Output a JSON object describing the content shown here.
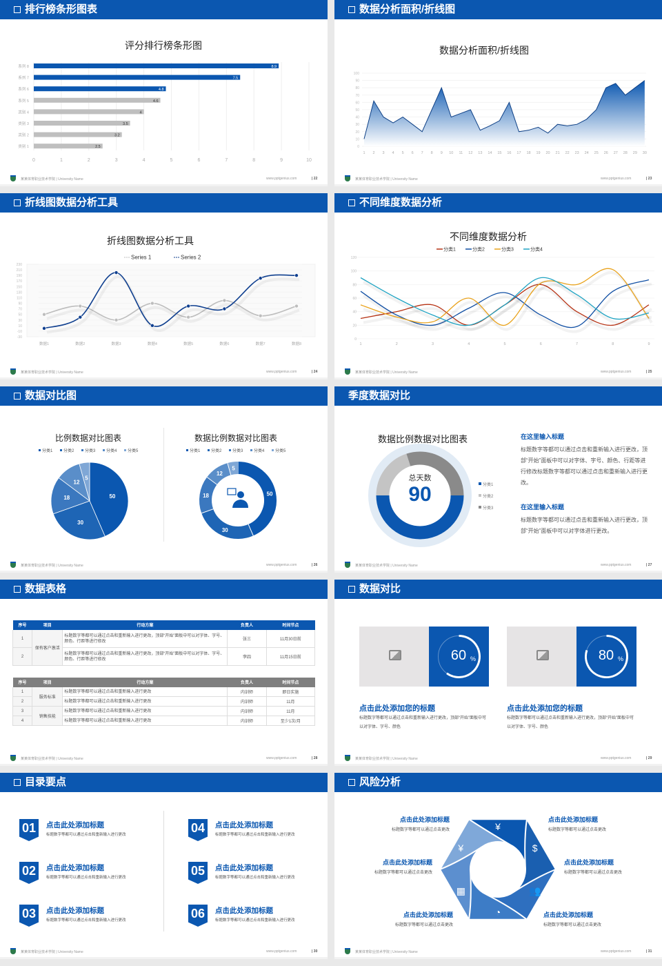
{
  "footer": {
    "school": "某某体育职业技术学院 | University Name",
    "site": "www.pptgenius.com"
  },
  "colors": {
    "brand": "#0b57b0",
    "gray_bar": "#bfbfbf",
    "table2_header": "#7f7f7f"
  },
  "slides": [
    {
      "title": "排行榜条形图表",
      "page": "22",
      "header_icon": "square-bullet-icon"
    },
    {
      "title": "数据分析面积/折线图",
      "page": "23",
      "header_icon": "square-bullet-icon"
    },
    {
      "title": "折线图数据分析工具",
      "page": "24",
      "header_icon": "square-bullet-icon"
    },
    {
      "title": "不同维度数据分析",
      "page": "25",
      "header_icon": "square-bullet-icon"
    },
    {
      "title": "数据对比图",
      "page": "26",
      "header_icon": "square-bullet-icon"
    },
    {
      "title": "季度数据对比",
      "page": "27",
      "header_icon": null
    },
    {
      "title": "数据表格",
      "page": "28",
      "header_icon": "square-bullet-icon"
    },
    {
      "title": "数据对比",
      "page": "29",
      "header_icon": "square-bullet-icon"
    },
    {
      "title": "目录要点",
      "page": "30",
      "header_icon": "square-bullet-icon"
    },
    {
      "title": "风险分析",
      "page": "31",
      "header_icon": "square-bullet-icon"
    }
  ],
  "chart_data": [
    {
      "type": "bar",
      "orientation": "horizontal",
      "title": "评分排行榜条形图",
      "categories": [
        "系列 8",
        "系列 7",
        "系列 6",
        "系列 5",
        "类别 4",
        "类别 3",
        "类别 2",
        "类别 1"
      ],
      "values": [
        8.9,
        7.5,
        4.8,
        4.6,
        4,
        3.5,
        3.2,
        2.5
      ],
      "highlight_colors": [
        "#0b57b0",
        "#0b57b0",
        "#0b57b0",
        "#bfbfbf",
        "#bfbfbf",
        "#bfbfbf",
        "#bfbfbf",
        "#bfbfbf"
      ],
      "xlim": [
        0,
        10
      ],
      "xticks": [
        0,
        1,
        2,
        3,
        4,
        5,
        6,
        7,
        8,
        9,
        10
      ],
      "grid": true
    },
    {
      "type": "area",
      "title": "数据分析面积/折线图",
      "x": [
        1,
        2,
        3,
        4,
        5,
        6,
        7,
        8,
        9,
        10,
        11,
        12,
        13,
        14,
        15,
        16,
        17,
        18,
        19,
        20,
        21,
        22,
        23,
        24,
        25,
        26,
        27,
        28,
        29,
        30
      ],
      "values": [
        10,
        62,
        40,
        32,
        40,
        30,
        20,
        50,
        80,
        40,
        45,
        50,
        22,
        28,
        35,
        60,
        20,
        22,
        26,
        18,
        30,
        28,
        30,
        37,
        50,
        80,
        86,
        70,
        80,
        90
      ],
      "ylim": [
        0,
        100
      ],
      "yticks": [
        0,
        10,
        20,
        30,
        40,
        50,
        60,
        70,
        80,
        90,
        100
      ],
      "color": "#0b57b0"
    },
    {
      "type": "line",
      "title": "折线图数据分析工具",
      "smooth": true,
      "categories": [
        "数据1",
        "数据2",
        "数据3",
        "数据4",
        "数据5",
        "数据6",
        "数据7",
        "数据8"
      ],
      "series": [
        {
          "name": "Series 1",
          "values": [
            50,
            80,
            30,
            90,
            40,
            100,
            45,
            80
          ],
          "color": "#bdbdbd"
        },
        {
          "name": "Series 2",
          "values": [
            0,
            40,
            200,
            10,
            80,
            70,
            180,
            190
          ],
          "color": "#0f3f8f"
        }
      ],
      "ylim": [
        -30,
        230
      ],
      "yticks": [
        -30,
        -10,
        10,
        30,
        50,
        70,
        90,
        110,
        130,
        150,
        170,
        190,
        210,
        230
      ],
      "legend": "top"
    },
    {
      "type": "line",
      "title": "不同维度数据分析",
      "smooth": true,
      "x": [
        1,
        2,
        3,
        4,
        5,
        6,
        7,
        8,
        9
      ],
      "series": [
        {
          "name": "分类1",
          "values": [
            30,
            40,
            50,
            20,
            50,
            80,
            40,
            20,
            50
          ],
          "color": "#b63214"
        },
        {
          "name": "分类2",
          "values": [
            70,
            35,
            20,
            45,
            68,
            35,
            18,
            70,
            87
          ],
          "color": "#0f4ea3"
        },
        {
          "name": "分类3",
          "values": [
            50,
            32,
            25,
            60,
            20,
            82,
            80,
            102,
            30
          ],
          "color": "#e9a21b"
        },
        {
          "name": "分类4",
          "values": [
            90,
            60,
            35,
            20,
            50,
            90,
            65,
            30,
            38
          ],
          "color": "#1fa3c2"
        }
      ],
      "ylim": [
        0,
        120
      ],
      "yticks": [
        0,
        20,
        40,
        60,
        80,
        100,
        120
      ],
      "legend": "top"
    },
    {
      "type": "pie",
      "title": "比例数据对比图表",
      "labels": [
        "分类1",
        "分类2",
        "分类3",
        "分类4",
        "分类5"
      ],
      "values": [
        50,
        30,
        18,
        12,
        5
      ],
      "colors": [
        "#0b57b0",
        "#1e65b5",
        "#3b78bf",
        "#5a8ec9",
        "#7fa7d6"
      ],
      "legend": "top"
    },
    {
      "type": "pie",
      "variant": "donut",
      "title": "数据比例数据对比图表",
      "center_icon": "customer-service-icon",
      "labels": [
        "分类1",
        "分类2",
        "分类3",
        "分类4",
        "分类5"
      ],
      "values": [
        50,
        30,
        18,
        12,
        5
      ],
      "colors": [
        "#0b57b0",
        "#1e65b5",
        "#3b78bf",
        "#5a8ec9",
        "#7fa7d6"
      ],
      "legend": "top"
    },
    {
      "type": "pie",
      "variant": "donut",
      "title": "数据比例数据对比图表",
      "center_label": "总天数",
      "center_value": "90",
      "labels": [
        "分类1",
        "分类2",
        "分类3"
      ],
      "values": [
        50,
        20,
        30
      ],
      "colors": [
        "#0b57b0",
        "#c4c4c4",
        "#8a8a8a"
      ],
      "legend": "right"
    }
  ],
  "quarter": {
    "blocks": [
      {
        "title": "在这里输入标题",
        "text": "标题数字等都可以通过点击和重新输入进行更改，顶部“开始”面板中可以对字体、字号、颜色、行距等进行修改标题数字等都可以通过点击和重新输入进行更改。"
      },
      {
        "title": "在这里输入标题",
        "text": "标题数字等都可以通过点击和重新输入进行更改，顶部“开始”面板中可以对字体进行更改。"
      }
    ]
  },
  "table1": {
    "headers": [
      "序号",
      "项目",
      "行动方案",
      "负责人",
      "时间节点"
    ],
    "groups": [
      {
        "item": "保有客户激活",
        "rows": [
          [
            "1",
            "标题数字等都可以通过点击和重新输入进行更改，顶部“开始”面板中可以对字体、字号、颜色、行距等进行修改",
            "张三",
            "11月30日前"
          ],
          [
            "2",
            "标题数字等都可以通过点击和重新输入进行更改，顶部“开始”面板中可以对字体、字号、颜色、行距等进行修改",
            "李四",
            "11月15日前"
          ]
        ]
      }
    ]
  },
  "table2": {
    "headers": [
      "序号",
      "项目",
      "行动方案",
      "负责人",
      "时间节点"
    ],
    "groups": [
      {
        "item": "服务标准",
        "rows": [
          [
            "1",
            "标题数字等都可以通过点击和重新输入进行更改",
            "内训师",
            "即日实施"
          ],
          [
            "2",
            "标题数字等都可以通过点击和重新输入进行更改",
            "内训师",
            "11月"
          ]
        ]
      },
      {
        "item": "销售技能",
        "rows": [
          [
            "3",
            "标题数字等都可以通过点击和重新输入进行更改",
            "内训师",
            "11月"
          ],
          [
            "4",
            "标题数字等都可以通过点击和重新输入进行更改",
            "内训师",
            "至少1次/月"
          ]
        ]
      }
    ]
  },
  "compare": {
    "cards": [
      {
        "percent": 60,
        "value": "60",
        "unit": "%",
        "title": "点击此处添加您的标题",
        "text": "标题数字等都可以通过点击和重新输入进行更改，顶部“开始”面板中可以对字体、字号、颜色",
        "image_icon": "add-image-icon"
      },
      {
        "percent": 80,
        "value": "80",
        "unit": "%",
        "title": "点击此处添加您的标题",
        "text": "标题数字等都可以通过点击和重新输入进行更改，顶部“开始”面板中可以对字体、字号、颜色",
        "image_icon": "add-image-icon"
      }
    ]
  },
  "toc": {
    "items": [
      {
        "num": "01",
        "title": "点击此处添加标题",
        "text": "标题数字等都可以通过点击和重新输入进行更改"
      },
      {
        "num": "02",
        "title": "点击此处添加标题",
        "text": "标题数字等都可以通过点击和重新输入进行更改"
      },
      {
        "num": "03",
        "title": "点击此处添加标题",
        "text": "标题数字等都可以通过点击和重新输入进行更改"
      },
      {
        "num": "04",
        "title": "点击此处添加标题",
        "text": "标题数字等都可以通过点击和重新输入进行更改"
      },
      {
        "num": "05",
        "title": "点击此处添加标题",
        "text": "标题数字等都可以通过点击和重新输入进行更改"
      },
      {
        "num": "06",
        "title": "点击此处添加标题",
        "text": "标题数字等都可以通过点击和重新输入进行更改"
      }
    ]
  },
  "risk": {
    "items": [
      {
        "title": "点击此处添加标题",
        "text": "标题数字等都可以通过点击更改",
        "icon": "money-bag-icon"
      },
      {
        "title": "点击此处添加标题",
        "text": "标题数字等都可以通过点击更改",
        "icon": "coins-icon"
      },
      {
        "title": "点击此处添加标题",
        "text": "标题数字等都可以通过点击更改",
        "icon": "people-icon"
      },
      {
        "title": "点击此处添加标题",
        "text": "标题数字等都可以通过点击更改",
        "icon": "pie-chart-icon"
      },
      {
        "title": "点击此处添加标题",
        "text": "标题数字等都可以通过点击更改",
        "icon": "building-icon"
      },
      {
        "title": "点击此处添加标题",
        "text": "标题数字等都可以通过点击更改",
        "icon": "money-hand-icon"
      }
    ]
  }
}
